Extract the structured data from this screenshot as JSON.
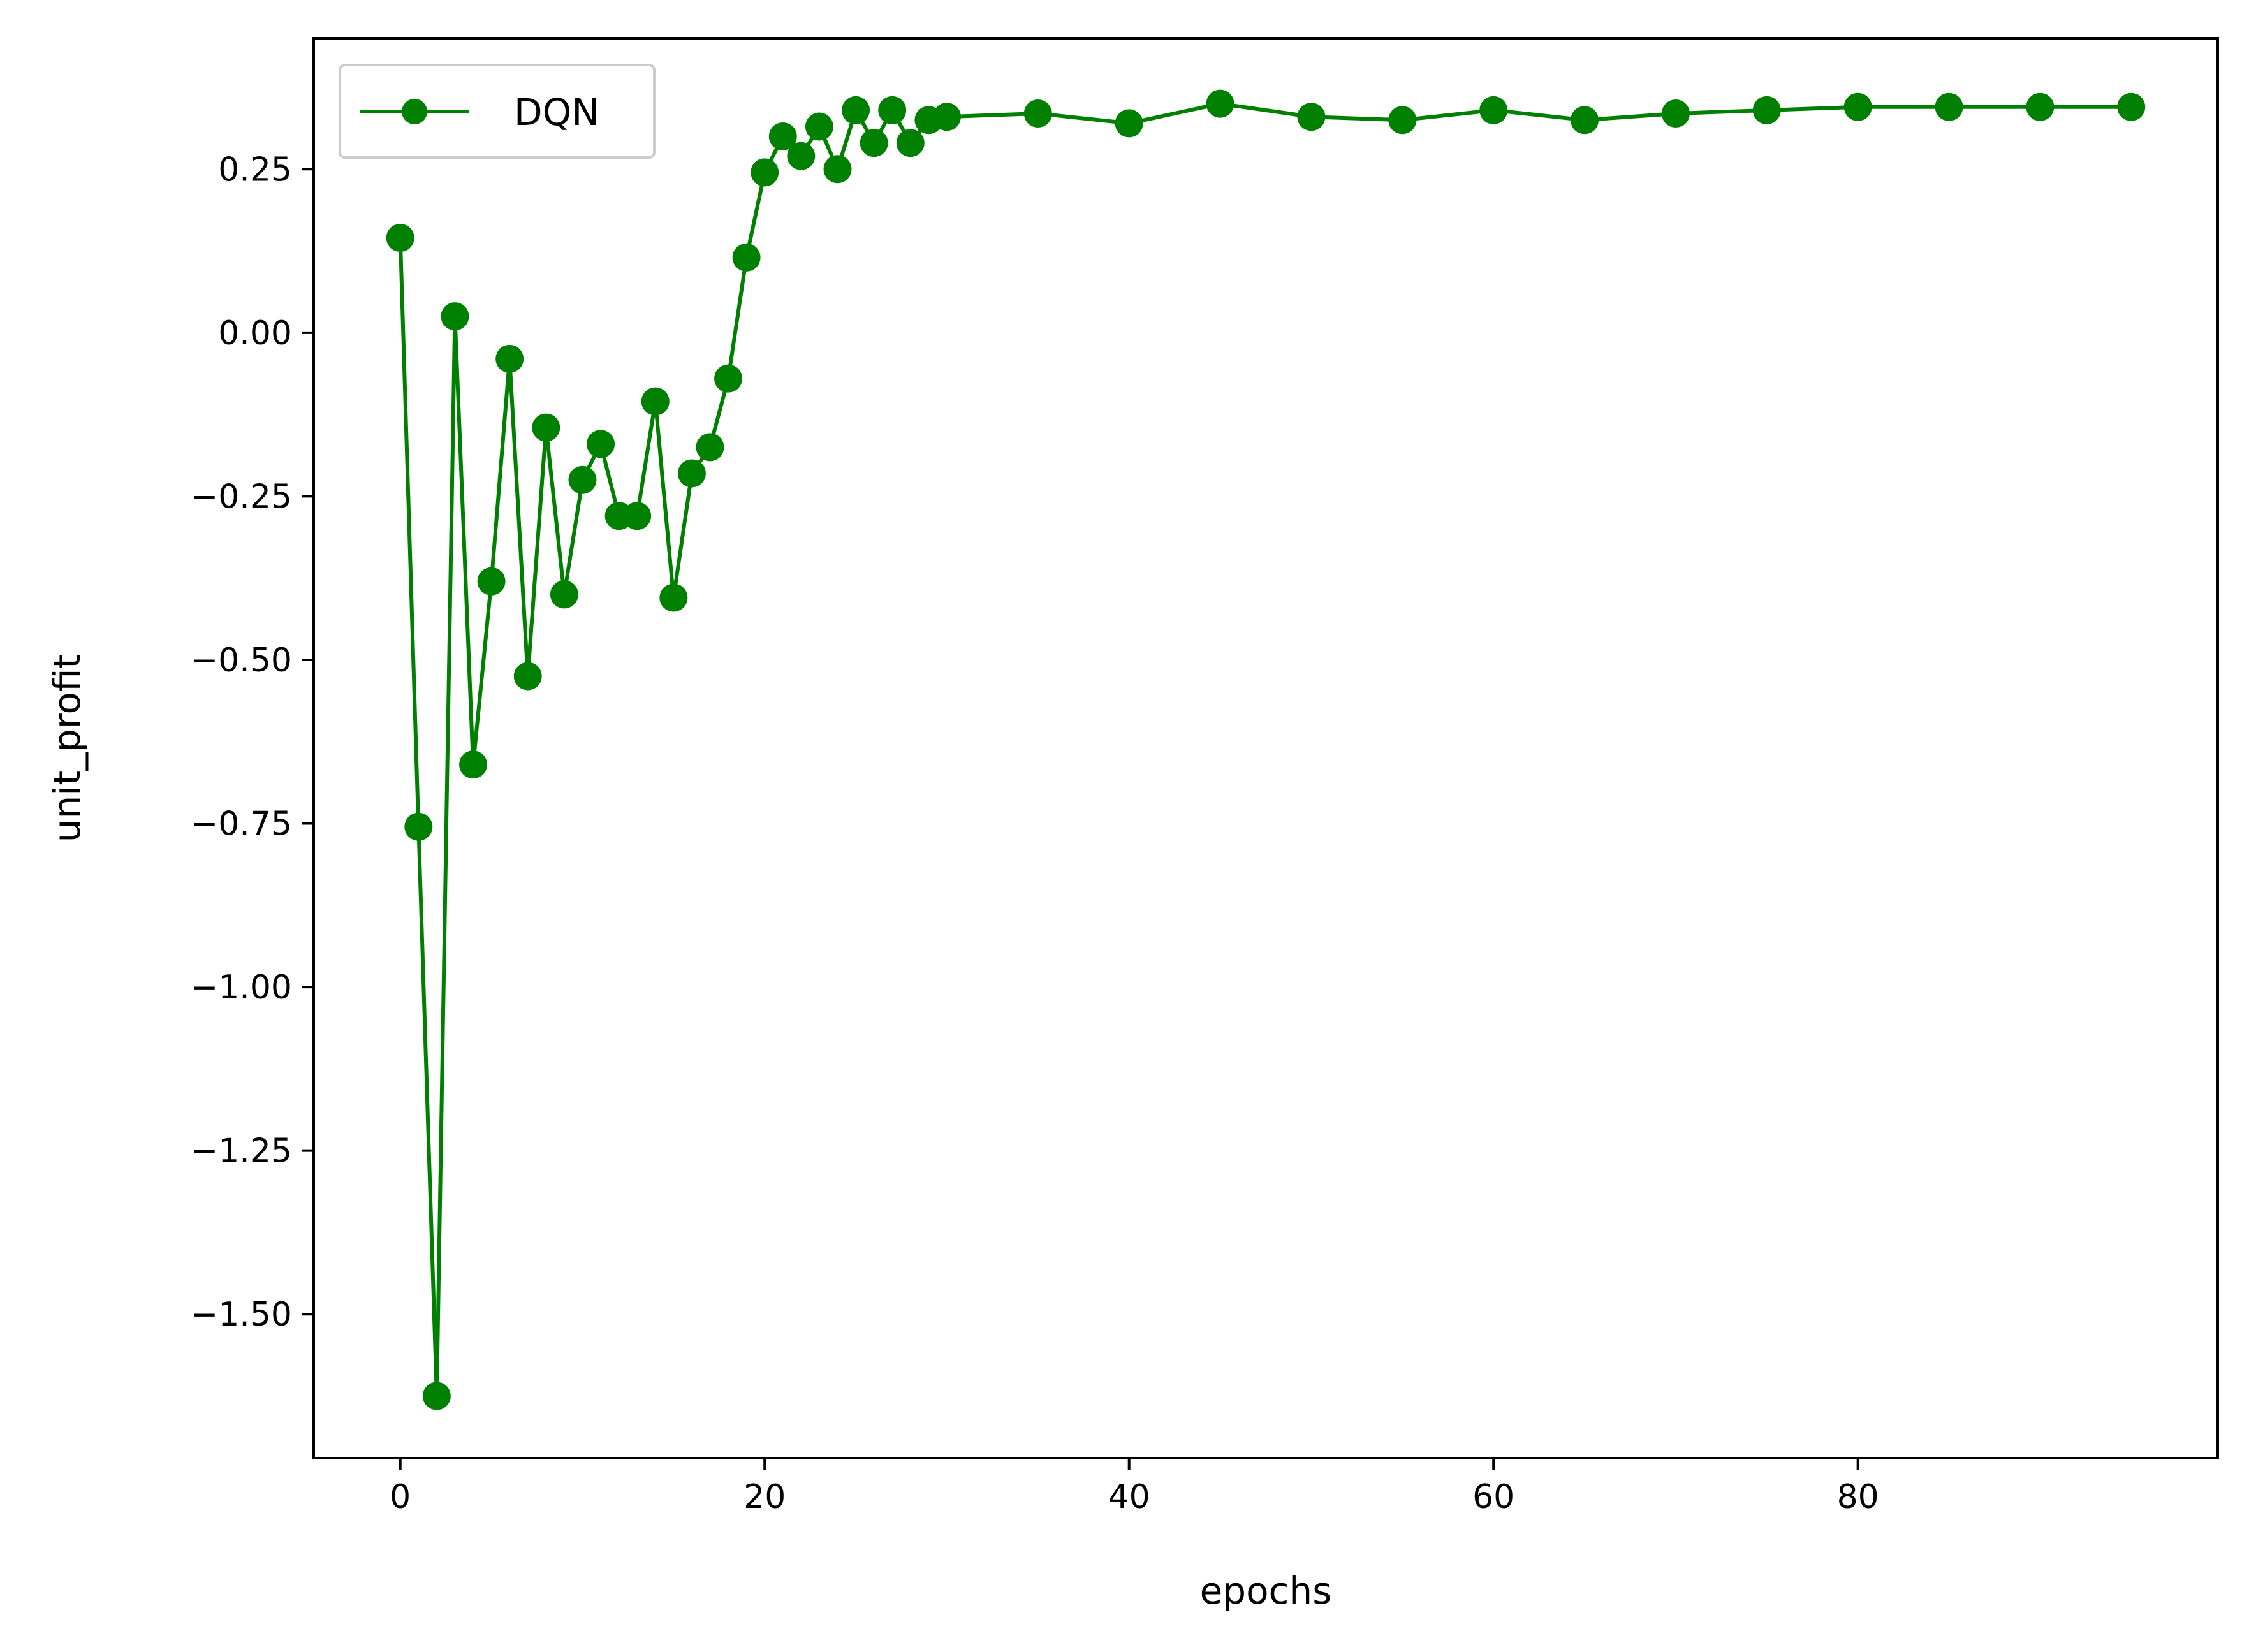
{
  "chart_data": {
    "type": "line",
    "title": "",
    "xlabel": "epochs",
    "ylabel": "unit_profit",
    "xlim": [
      -4.75,
      99.75
    ],
    "ylim": [
      -1.72,
      0.45
    ],
    "x_ticks": [
      {
        "value": 0,
        "label": "0"
      },
      {
        "value": 20,
        "label": "20"
      },
      {
        "value": 40,
        "label": "40"
      },
      {
        "value": 60,
        "label": "60"
      },
      {
        "value": 80,
        "label": "80"
      }
    ],
    "y_ticks": [
      {
        "value": 0.25,
        "label": "0.25"
      },
      {
        "value": 0.0,
        "label": "0.00"
      },
      {
        "value": -0.25,
        "label": "−0.25"
      },
      {
        "value": -0.5,
        "label": "−0.50"
      },
      {
        "value": -0.75,
        "label": "−0.75"
      },
      {
        "value": -1.0,
        "label": "−1.00"
      },
      {
        "value": -1.25,
        "label": "−1.25"
      },
      {
        "value": -1.5,
        "label": "−1.50"
      }
    ],
    "grid": false,
    "legend_position": "top-left",
    "series": [
      {
        "name": "DQN",
        "color": "#008000",
        "marker": "circle",
        "x": [
          0,
          1,
          2,
          3,
          4,
          5,
          6,
          7,
          8,
          9,
          10,
          11,
          12,
          13,
          14,
          15,
          16,
          17,
          18,
          19,
          20,
          21,
          22,
          23,
          24,
          25,
          26,
          27,
          28,
          29,
          30,
          35,
          40,
          45,
          50,
          55,
          60,
          65,
          70,
          75,
          80,
          85,
          90,
          95
        ],
        "y": [
          0.145,
          -0.755,
          -1.625,
          0.025,
          -0.66,
          -0.38,
          -0.04,
          -0.525,
          -0.145,
          -0.4,
          -0.225,
          -0.17,
          -0.28,
          -0.28,
          -0.105,
          -0.405,
          -0.215,
          -0.175,
          -0.07,
          0.115,
          0.245,
          0.3,
          0.27,
          0.315,
          0.25,
          0.34,
          0.29,
          0.34,
          0.29,
          0.325,
          0.33,
          0.335,
          0.32,
          0.35,
          0.33,
          0.325,
          0.34,
          0.325,
          0.335,
          0.34,
          0.345,
          0.345,
          0.345,
          0.345
        ]
      }
    ]
  }
}
